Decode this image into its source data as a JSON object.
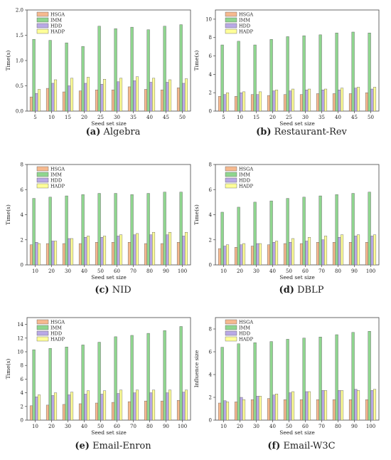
{
  "legend_colors": {
    "HSGA": "#f6b98f",
    "IMM": "#8fd68f",
    "HDD": "#b9a9e6",
    "HADP": "#ffff99"
  },
  "chart_data": [
    {
      "type": "bar",
      "caption_letter": "(a)",
      "caption_title": "Algebra",
      "xlabel": "Seed set size",
      "ylabel": "Time(s)",
      "categories": [
        "5",
        "10",
        "15",
        "20",
        "25",
        "30",
        "35",
        "40",
        "45",
        "50"
      ],
      "ylim": [
        0,
        2.0
      ],
      "yticks": [
        "0.0",
        "0.5",
        "1.0",
        "1.5",
        "2.0"
      ],
      "legend": "top-left",
      "series": [
        {
          "name": "HSGA",
          "values": [
            0.28,
            0.45,
            0.38,
            0.4,
            0.42,
            0.42,
            0.48,
            0.43,
            0.42,
            0.46
          ]
        },
        {
          "name": "IMM",
          "values": [
            1.42,
            1.4,
            1.35,
            1.28,
            1.68,
            1.63,
            1.66,
            1.61,
            1.68,
            1.71
          ]
        },
        {
          "name": "HDD",
          "values": [
            0.35,
            0.55,
            0.5,
            0.55,
            0.53,
            0.58,
            0.6,
            0.57,
            0.57,
            0.55
          ]
        },
        {
          "name": "HADP",
          "values": [
            0.43,
            0.62,
            0.65,
            0.67,
            0.63,
            0.65,
            0.68,
            0.65,
            0.62,
            0.64
          ]
        }
      ]
    },
    {
      "type": "bar",
      "caption_letter": "(b)",
      "caption_title": "Restaurant-Rev",
      "xlabel": "Seed set size",
      "ylabel": "Time(s)",
      "categories": [
        "5",
        "10",
        "15",
        "20",
        "25",
        "30",
        "35",
        "40",
        "45",
        "50"
      ],
      "ylim": [
        0,
        11
      ],
      "yticks": [
        "0",
        "2",
        "4",
        "6",
        "8",
        "10"
      ],
      "legend": "top-left",
      "series": [
        {
          "name": "HSGA",
          "values": [
            1.6,
            1.6,
            1.8,
            1.7,
            1.8,
            1.8,
            1.9,
            1.9,
            1.9,
            2.0
          ]
        },
        {
          "name": "IMM",
          "values": [
            7.2,
            7.6,
            7.2,
            7.8,
            8.1,
            8.2,
            8.3,
            8.5,
            8.6,
            8.5
          ]
        },
        {
          "name": "HDD",
          "values": [
            1.8,
            2.0,
            1.8,
            2.2,
            2.2,
            2.3,
            2.3,
            2.3,
            2.5,
            2.4
          ]
        },
        {
          "name": "HADP",
          "values": [
            2.0,
            2.1,
            2.1,
            2.3,
            2.4,
            2.4,
            2.4,
            2.5,
            2.6,
            2.6
          ]
        }
      ]
    },
    {
      "type": "bar",
      "caption_letter": "(c)",
      "caption_title": "NID",
      "xlabel": "Seed set size",
      "ylabel": "Time(s)",
      "categories": [
        "10",
        "20",
        "30",
        "40",
        "50",
        "60",
        "70",
        "80",
        "90",
        "100"
      ],
      "ylim": [
        0,
        8
      ],
      "yticks": [
        "0",
        "2",
        "4",
        "6",
        "8"
      ],
      "legend": "top-left",
      "series": [
        {
          "name": "HSGA",
          "values": [
            1.6,
            1.7,
            1.7,
            1.7,
            1.8,
            1.8,
            1.8,
            1.7,
            1.7,
            1.8
          ]
        },
        {
          "name": "IMM",
          "values": [
            5.3,
            5.4,
            5.5,
            5.6,
            5.7,
            5.7,
            5.6,
            5.7,
            5.8,
            5.8
          ]
        },
        {
          "name": "HDD",
          "values": [
            1.8,
            1.9,
            2.1,
            2.2,
            2.2,
            2.3,
            2.4,
            2.4,
            2.4,
            2.3
          ]
        },
        {
          "name": "HADP",
          "values": [
            1.7,
            1.9,
            2.1,
            2.3,
            2.3,
            2.4,
            2.5,
            2.6,
            2.6,
            2.6
          ]
        }
      ]
    },
    {
      "type": "bar",
      "caption_letter": "(d)",
      "caption_title": "DBLP",
      "xlabel": "Seed set size",
      "ylabel": "Time(s)",
      "categories": [
        "10",
        "20",
        "30",
        "40",
        "50",
        "60",
        "70",
        "80",
        "90",
        "100"
      ],
      "ylim": [
        0,
        8
      ],
      "yticks": [
        "0",
        "2",
        "4",
        "6",
        "8"
      ],
      "legend": "top-left",
      "series": [
        {
          "name": "HSGA",
          "values": [
            1.3,
            1.4,
            1.5,
            1.6,
            1.7,
            1.7,
            1.8,
            1.8,
            1.8,
            1.8
          ]
        },
        {
          "name": "IMM",
          "values": [
            4.2,
            4.6,
            5.0,
            5.1,
            5.3,
            5.4,
            5.5,
            5.6,
            5.7,
            5.8
          ]
        },
        {
          "name": "HDD",
          "values": [
            1.5,
            1.6,
            1.7,
            1.8,
            1.8,
            1.9,
            2.0,
            2.2,
            2.3,
            2.3
          ]
        },
        {
          "name": "HADP",
          "values": [
            1.6,
            1.7,
            1.7,
            1.9,
            2.1,
            2.2,
            2.3,
            2.4,
            2.4,
            2.4
          ]
        }
      ]
    },
    {
      "type": "bar",
      "caption_letter": "(e)",
      "caption_title": "Email-Enron",
      "xlabel": "Seed set size",
      "ylabel": "Time(s)",
      "categories": [
        "10",
        "20",
        "30",
        "40",
        "50",
        "60",
        "70",
        "80",
        "90",
        "100"
      ],
      "ylim": [
        0,
        15
      ],
      "yticks": [
        "0",
        "2",
        "4",
        "6",
        "8",
        "10",
        "12",
        "14"
      ],
      "legend": "top-left",
      "series": [
        {
          "name": "HSGA",
          "values": [
            2.1,
            2.2,
            2.3,
            2.4,
            2.5,
            2.6,
            2.7,
            2.8,
            2.8,
            2.9
          ]
        },
        {
          "name": "IMM",
          "values": [
            10.3,
            10.5,
            10.7,
            11.0,
            11.4,
            12.2,
            12.4,
            12.7,
            13.1,
            13.7
          ]
        },
        {
          "name": "HDD",
          "values": [
            3.4,
            3.6,
            3.7,
            3.8,
            3.8,
            3.9,
            4.0,
            4.0,
            4.0,
            4.1
          ]
        },
        {
          "name": "HADP",
          "values": [
            3.7,
            4.0,
            4.1,
            4.3,
            4.3,
            4.4,
            4.4,
            4.4,
            4.4,
            4.4
          ]
        }
      ]
    },
    {
      "type": "bar",
      "caption_letter": "(f)",
      "caption_title": "Email-W3C",
      "xlabel": "Seed set size",
      "ylabel": "Influence size",
      "categories": [
        "10",
        "20",
        "30",
        "40",
        "50",
        "60",
        "70",
        "80",
        "90",
        "100"
      ],
      "ylim": [
        0,
        9
      ],
      "yticks": [
        "0",
        "2",
        "4",
        "6",
        "8"
      ],
      "legend": "top-left",
      "series": [
        {
          "name": "HSGA",
          "values": [
            1.5,
            1.6,
            1.8,
            1.9,
            1.8,
            1.8,
            1.8,
            1.8,
            1.8,
            1.8
          ]
        },
        {
          "name": "IMM",
          "values": [
            6.4,
            6.7,
            6.8,
            6.9,
            7.1,
            7.2,
            7.3,
            7.5,
            7.7,
            7.8
          ]
        },
        {
          "name": "HDD",
          "values": [
            1.7,
            2.0,
            2.1,
            2.2,
            2.4,
            2.5,
            2.6,
            2.6,
            2.7,
            2.6
          ]
        },
        {
          "name": "HADP",
          "values": [
            1.6,
            1.8,
            2.1,
            2.3,
            2.5,
            2.5,
            2.6,
            2.6,
            2.6,
            2.7
          ]
        }
      ]
    }
  ]
}
